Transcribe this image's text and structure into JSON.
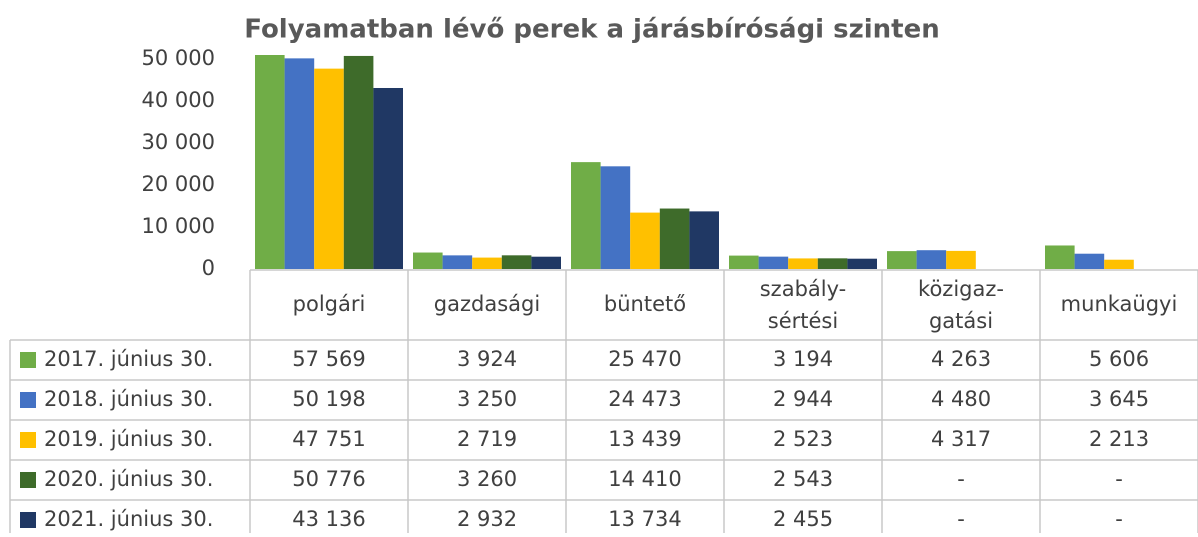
{
  "chart_data": {
    "type": "bar",
    "title": "Folyamatban lévő perek a járásbírósági szinten",
    "categories": [
      "polgári",
      "gazdasági",
      "büntető",
      "szabály-sértési",
      "közigaz-gatási",
      "munkaügyi"
    ],
    "series": [
      {
        "name": "2017. június 30.",
        "color": "#70ad47",
        "values": [
          57569,
          3924,
          25470,
          3194,
          4263,
          5606
        ],
        "value_labels": [
          "57 569",
          "3 924",
          "25 470",
          "3 194",
          "4 263",
          "5 606"
        ]
      },
      {
        "name": "2018. június 30.",
        "color": "#4472c4",
        "values": [
          50198,
          3250,
          24473,
          2944,
          4480,
          3645
        ],
        "value_labels": [
          "50 198",
          "3 250",
          "24 473",
          "2 944",
          "4 480",
          "3 645"
        ]
      },
      {
        "name": "2019. június 30.",
        "color": "#ffc000",
        "values": [
          47751,
          2719,
          13439,
          2523,
          4317,
          2213
        ],
        "value_labels": [
          "47 751",
          "2 719",
          "13 439",
          "2 523",
          "4 317",
          "2 213"
        ]
      },
      {
        "name": "2020. június 30.",
        "color": "#3e6b2a",
        "values": [
          50776,
          3260,
          14410,
          2543,
          null,
          null
        ],
        "value_labels": [
          "50 776",
          "3 260",
          "14 410",
          "2 543",
          "-",
          "-"
        ]
      },
      {
        "name": "2021. június 30.",
        "color": "#203864",
        "values": [
          43136,
          2932,
          13734,
          2455,
          null,
          null
        ],
        "value_labels": [
          "43 136",
          "2 932",
          "13 734",
          "2 455",
          "-",
          "-"
        ]
      }
    ],
    "ylim": [
      0,
      51000
    ],
    "yticks": [
      0,
      {
        "value": 10000,
        "label": "10 000"
      },
      {
        "value": 20000,
        "label": "20 000"
      },
      {
        "value": 30000,
        "label": "30 000"
      },
      {
        "value": 40000,
        "label": "40 000"
      },
      {
        "value": 50000,
        "label": "50 000"
      }
    ]
  }
}
